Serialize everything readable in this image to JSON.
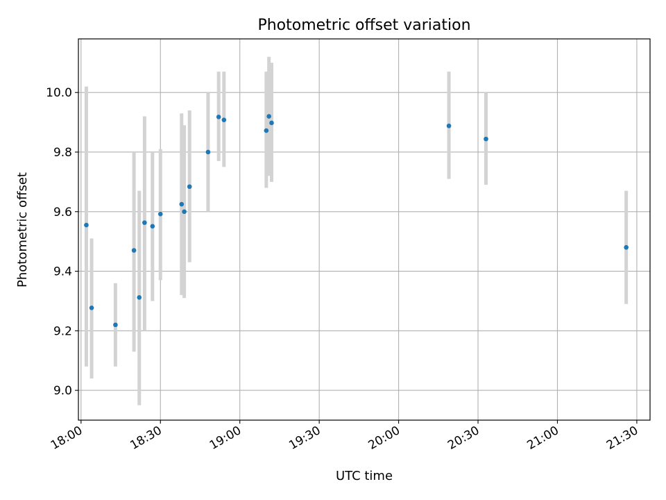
{
  "chart_data": {
    "type": "scatter",
    "title": "Photometric offset variation",
    "xlabel": "UTC time",
    "ylabel": "Photometric offset",
    "xlim": [
      "17:59",
      "21:35"
    ],
    "ylim": [
      8.9,
      10.18
    ],
    "x_ticks": [
      "18:00",
      "18:30",
      "19:00",
      "19:30",
      "20:00",
      "20:30",
      "21:00",
      "21:30"
    ],
    "y_ticks": [
      "9.0",
      "9.2",
      "9.4",
      "9.6",
      "9.8",
      "10.0"
    ],
    "grid": true,
    "colors": {
      "point": "#1f77b4",
      "errorbar": "#d3d3d3"
    },
    "points": [
      {
        "x": "18:02",
        "y": 9.555,
        "yerr_low": 9.08,
        "yerr_high": 10.02
      },
      {
        "x": "18:04",
        "y": 9.277,
        "yerr_low": 9.04,
        "yerr_high": 9.51
      },
      {
        "x": "18:13",
        "y": 9.22,
        "yerr_low": 9.08,
        "yerr_high": 9.36
      },
      {
        "x": "18:20",
        "y": 9.47,
        "yerr_low": 9.13,
        "yerr_high": 9.8
      },
      {
        "x": "18:22",
        "y": 9.312,
        "yerr_low": 8.95,
        "yerr_high": 9.67
      },
      {
        "x": "18:24",
        "y": 9.563,
        "yerr_low": 9.2,
        "yerr_high": 9.92
      },
      {
        "x": "18:27",
        "y": 9.551,
        "yerr_low": 9.3,
        "yerr_high": 9.8
      },
      {
        "x": "18:30",
        "y": 9.592,
        "yerr_low": 9.37,
        "yerr_high": 9.81
      },
      {
        "x": "18:38",
        "y": 9.625,
        "yerr_low": 9.32,
        "yerr_high": 9.93
      },
      {
        "x": "18:39",
        "y": 9.6,
        "yerr_low": 9.31,
        "yerr_high": 9.89
      },
      {
        "x": "18:41",
        "y": 9.684,
        "yerr_low": 9.43,
        "yerr_high": 9.94
      },
      {
        "x": "18:48",
        "y": 9.8,
        "yerr_low": 9.6,
        "yerr_high": 10.0
      },
      {
        "x": "18:52",
        "y": 9.918,
        "yerr_low": 9.77,
        "yerr_high": 10.07
      },
      {
        "x": "18:54",
        "y": 9.908,
        "yerr_low": 9.75,
        "yerr_high": 10.07
      },
      {
        "x": "19:10",
        "y": 9.872,
        "yerr_low": 9.68,
        "yerr_high": 10.07
      },
      {
        "x": "19:11",
        "y": 9.92,
        "yerr_low": 9.72,
        "yerr_high": 10.12
      },
      {
        "x": "19:12",
        "y": 9.898,
        "yerr_low": 9.7,
        "yerr_high": 10.1
      },
      {
        "x": "20:19",
        "y": 9.888,
        "yerr_low": 9.71,
        "yerr_high": 10.07
      },
      {
        "x": "20:33",
        "y": 9.844,
        "yerr_low": 9.69,
        "yerr_high": 10.0
      },
      {
        "x": "21:26",
        "y": 9.48,
        "yerr_low": 9.29,
        "yerr_high": 9.67
      }
    ]
  }
}
